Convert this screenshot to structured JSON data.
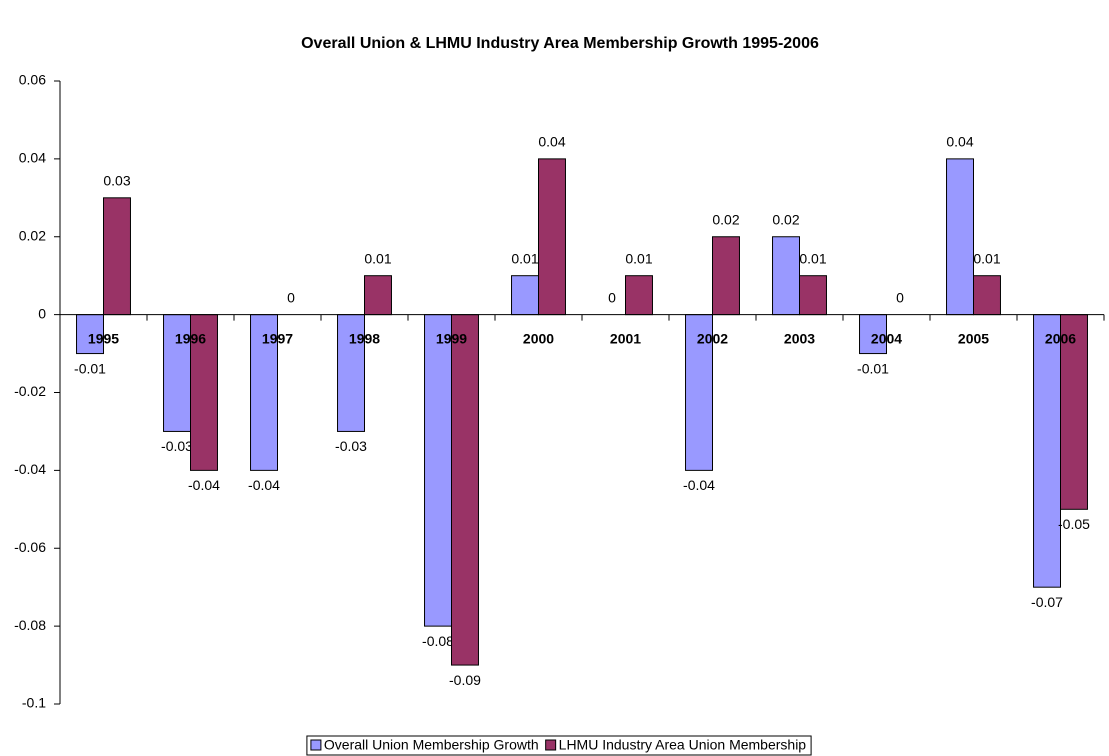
{
  "chart_data": {
    "type": "bar",
    "title": "Overall Union & LHMU Industry Area Membership Growth 1995-2006",
    "categories": [
      "1995",
      "1996",
      "1997",
      "1998",
      "1999",
      "2000",
      "2001",
      "2002",
      "2003",
      "2004",
      "2005",
      "2006"
    ],
    "series": [
      {
        "name": "Overall Union Membership Growth",
        "color": "#9999ff",
        "values": [
          -0.01,
          -0.03,
          -0.04,
          -0.03,
          -0.08,
          0.01,
          0,
          -0.04,
          0.02,
          -0.01,
          0.04,
          -0.07
        ]
      },
      {
        "name": "LHMU Industry Area Union Membership",
        "color": "#993366",
        "values": [
          0.03,
          -0.04,
          0,
          0.01,
          -0.09,
          0.04,
          0.01,
          0.02,
          0.01,
          0,
          0.01,
          -0.05
        ]
      }
    ],
    "ylim": [
      -0.1,
      0.06
    ],
    "yticks": [
      -0.1,
      -0.08,
      -0.06,
      -0.04,
      -0.02,
      0,
      0.02,
      0.04,
      0.06
    ],
    "legend": "bottom"
  }
}
